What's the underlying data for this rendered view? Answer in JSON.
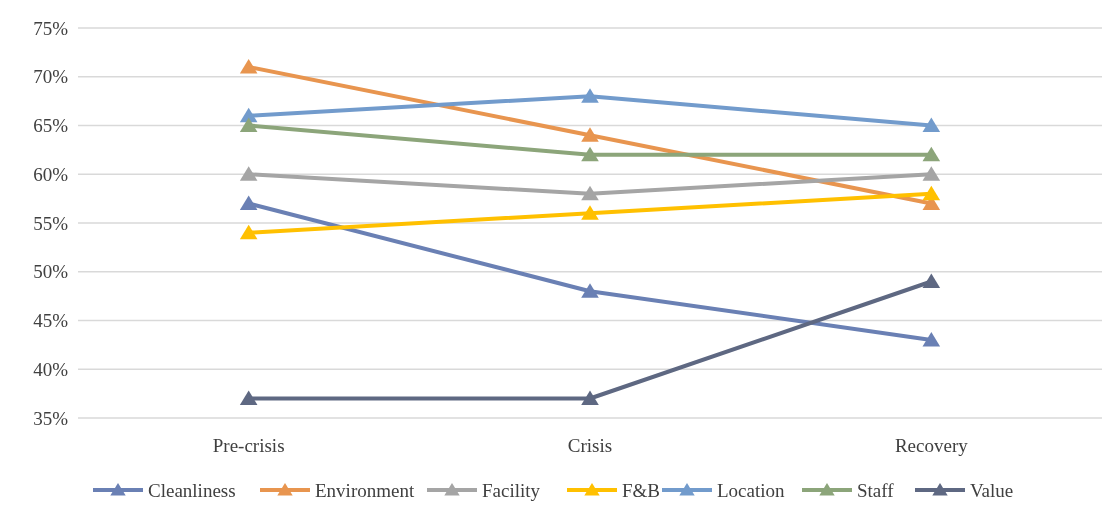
{
  "chart_data": {
    "type": "line",
    "categories": [
      "Pre-crisis",
      "Crisis",
      "Recovery"
    ],
    "series": [
      {
        "name": "Cleanliness",
        "color": "#6a80b4",
        "values": [
          57,
          48,
          43
        ]
      },
      {
        "name": "Environment",
        "color": "#e8954f",
        "values": [
          71,
          64,
          57
        ]
      },
      {
        "name": "Facility",
        "color": "#a5a5a5",
        "values": [
          60,
          58,
          60
        ]
      },
      {
        "name": "F&B",
        "color": "#ffc000",
        "values": [
          54,
          56,
          58
        ]
      },
      {
        "name": "Location",
        "color": "#729bcc",
        "values": [
          66,
          68,
          65
        ]
      },
      {
        "name": "Staff",
        "color": "#8ca57a",
        "values": [
          65,
          62,
          62
        ]
      },
      {
        "name": "Value",
        "color": "#5e6882",
        "values": [
          37,
          37,
          49
        ]
      }
    ],
    "ylim": [
      35,
      75
    ],
    "yticks": [
      {
        "value": 35,
        "label": "35%"
      },
      {
        "value": 40,
        "label": "40%"
      },
      {
        "value": 45,
        "label": "45%"
      },
      {
        "value": 50,
        "label": "50%"
      },
      {
        "value": 55,
        "label": "55%"
      },
      {
        "value": 60,
        "label": "60%"
      },
      {
        "value": 65,
        "label": "65%"
      },
      {
        "value": 70,
        "label": "70%"
      },
      {
        "value": 75,
        "label": "75%"
      }
    ],
    "grid": "y",
    "legend": "bottom",
    "marker": "triangle",
    "line_style": "solid"
  }
}
